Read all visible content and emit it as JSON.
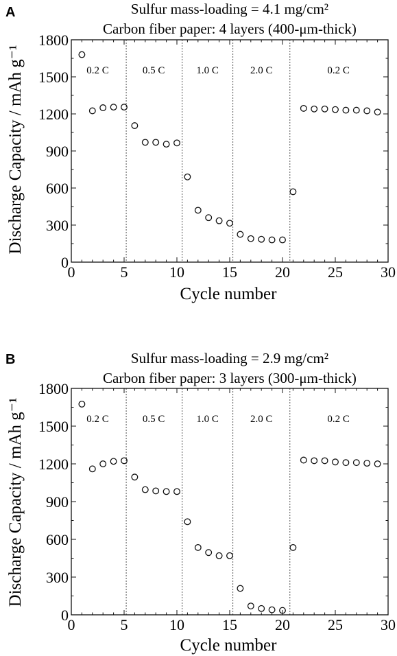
{
  "chart_data": [
    {
      "type": "scatter",
      "panel": "A",
      "title_lines": [
        "Sulfur mass-loading = 4.1 mg/cm²",
        "Carbon fiber paper: 4 layers (400-μm-thick)"
      ],
      "xlabel": "Cycle number",
      "ylabel": "Discharge Capacity / mAh g⁻¹",
      "xlim": [
        0,
        30
      ],
      "ylim": [
        0,
        1800
      ],
      "xticks": [
        0,
        5,
        10,
        15,
        20,
        25,
        30
      ],
      "yticks": [
        0,
        300,
        600,
        900,
        1200,
        1500,
        1800
      ],
      "grid": false,
      "rate_dividers": [
        5.2,
        10.5,
        15.3,
        20.7
      ],
      "rate_labels": [
        {
          "text": "0.2 C",
          "x": 2.5
        },
        {
          "text": "0.5 C",
          "x": 7.8
        },
        {
          "text": "1.0 C",
          "x": 12.9
        },
        {
          "text": "2.0 C",
          "x": 18.0
        },
        {
          "text": "0.2 C",
          "x": 25.3
        }
      ],
      "x": [
        1,
        2,
        3,
        4,
        5,
        6,
        7,
        8,
        9,
        10,
        11,
        12,
        13,
        14,
        15,
        16,
        17,
        18,
        19,
        20,
        21,
        22,
        23,
        24,
        25,
        26,
        27,
        28,
        29
      ],
      "y": [
        1680,
        1225,
        1250,
        1255,
        1255,
        1105,
        970,
        970,
        955,
        965,
        690,
        420,
        360,
        335,
        315,
        225,
        190,
        185,
        180,
        180,
        570,
        1245,
        1240,
        1240,
        1235,
        1230,
        1230,
        1225,
        1215
      ]
    },
    {
      "type": "scatter",
      "panel": "B",
      "title_lines": [
        "Sulfur mass-loading = 2.9 mg/cm²",
        "Carbon fiber paper: 3 layers (300-μm-thick)"
      ],
      "xlabel": "Cycle number",
      "ylabel": "Discharge Capacity / mAh g⁻¹",
      "xlim": [
        0,
        30
      ],
      "ylim": [
        0,
        1800
      ],
      "xticks": [
        0,
        5,
        10,
        15,
        20,
        25,
        30
      ],
      "yticks": [
        0,
        300,
        600,
        900,
        1200,
        1500,
        1800
      ],
      "grid": false,
      "rate_dividers": [
        5.2,
        10.5,
        15.3,
        20.7
      ],
      "rate_labels": [
        {
          "text": "0.2 C",
          "x": 2.5
        },
        {
          "text": "0.5 C",
          "x": 7.8
        },
        {
          "text": "1.0 C",
          "x": 12.9
        },
        {
          "text": "2.0 C",
          "x": 18.0
        },
        {
          "text": "0.2 C",
          "x": 25.3
        }
      ],
      "x": [
        1,
        2,
        3,
        4,
        5,
        6,
        7,
        8,
        9,
        10,
        11,
        12,
        13,
        14,
        15,
        16,
        17,
        18,
        19,
        20,
        21,
        22,
        23,
        24,
        25,
        26,
        27,
        28,
        29
      ],
      "y": [
        1675,
        1160,
        1200,
        1220,
        1225,
        1095,
        995,
        985,
        980,
        980,
        740,
        535,
        495,
        470,
        470,
        210,
        70,
        50,
        40,
        35,
        535,
        1230,
        1225,
        1225,
        1215,
        1210,
        1210,
        1205,
        1200
      ]
    }
  ]
}
